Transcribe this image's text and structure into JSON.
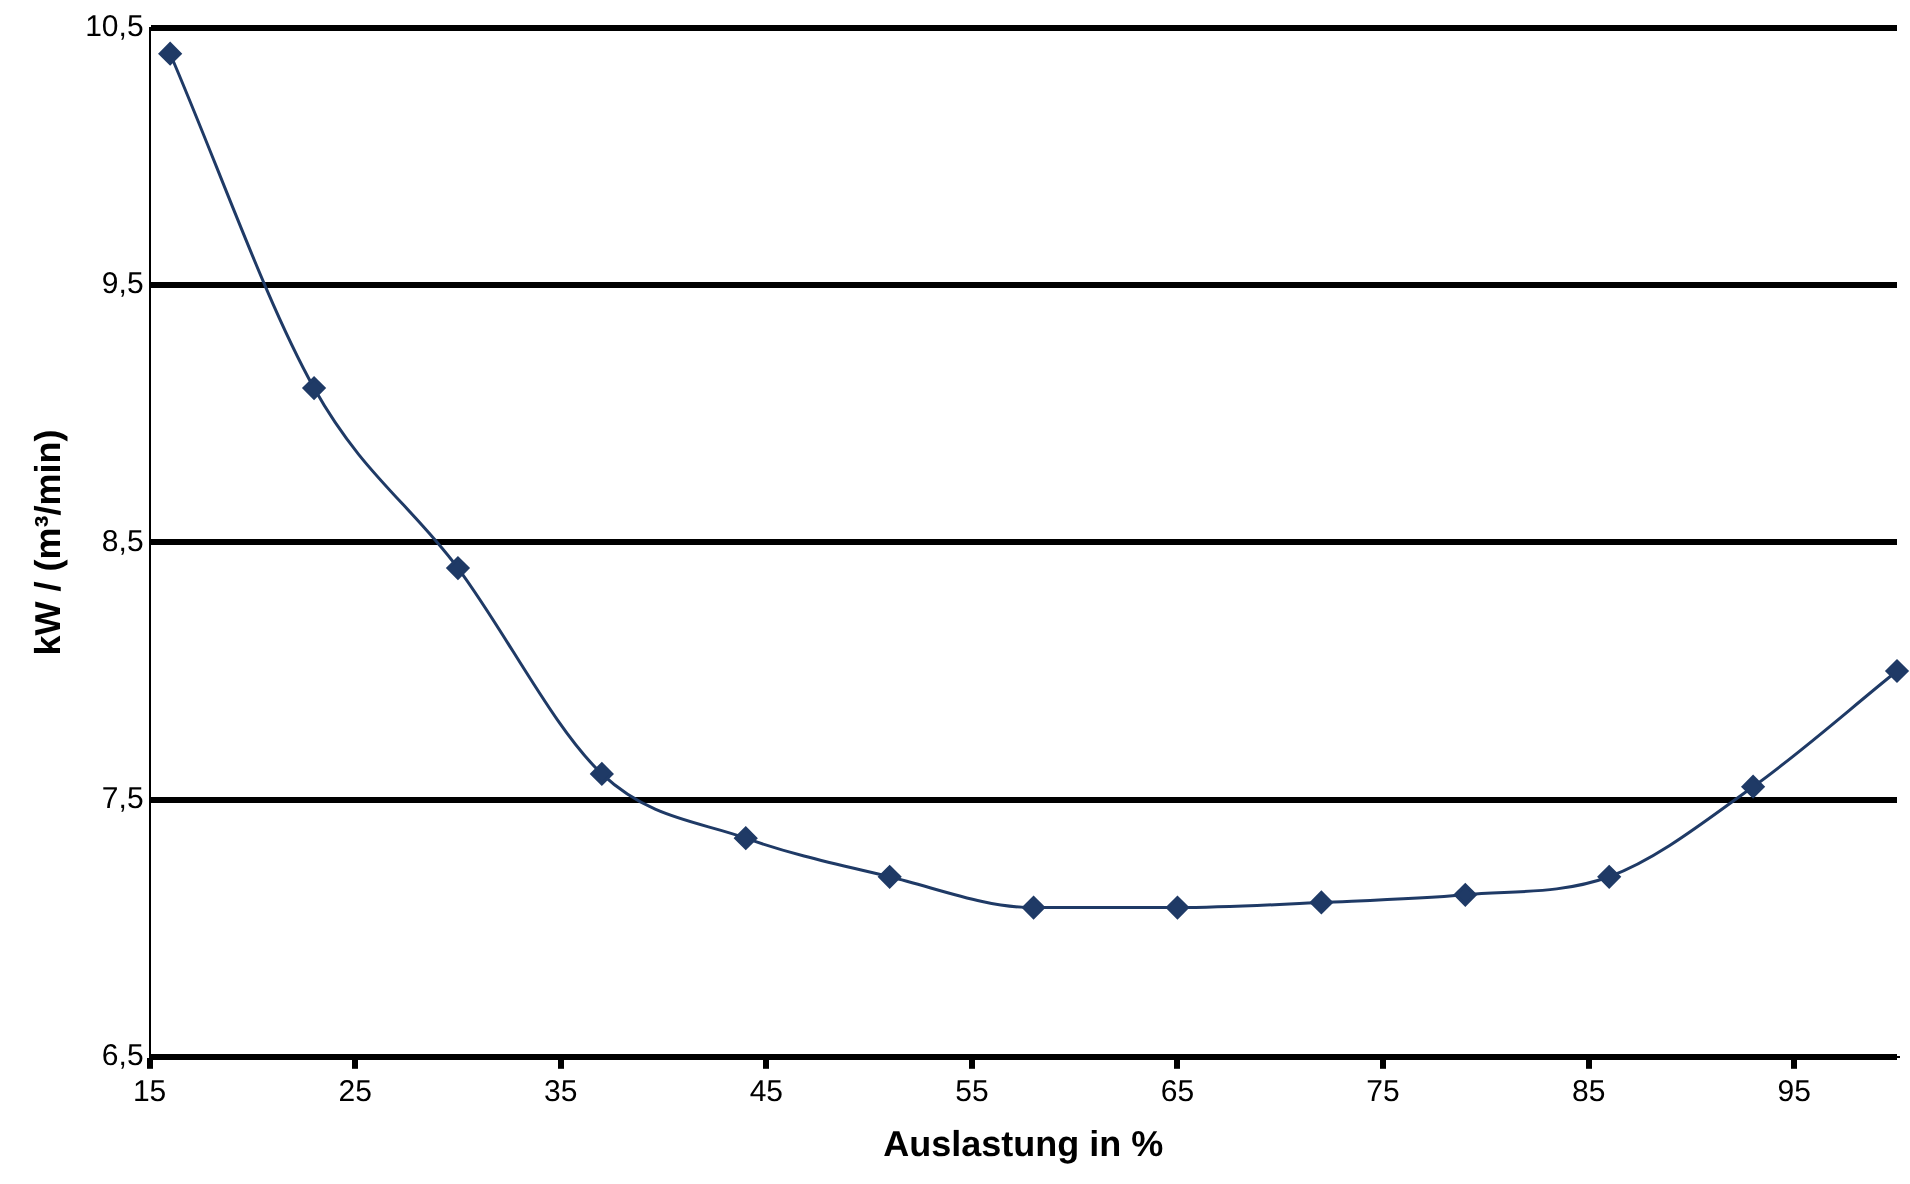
{
  "chart_data": {
    "type": "line",
    "xlabel": "Auslastung in %",
    "ylabel": "kW / (m³/min)",
    "x": [
      16,
      23,
      30,
      37,
      44,
      51,
      58,
      65,
      72,
      79,
      86,
      93,
      100
    ],
    "series": [
      {
        "color": "#1f3a66",
        "values": [
          10.4,
          9.1,
          8.4,
          7.6,
          7.35,
          7.2,
          7.08,
          7.08,
          7.1,
          7.13,
          7.2,
          7.55,
          8.0
        ]
      }
    ],
    "xlim": [
      15,
      100
    ],
    "xticks": [
      15,
      25,
      35,
      45,
      55,
      65,
      75,
      85,
      95
    ],
    "ylim": [
      6.5,
      10.5
    ],
    "yticks": [
      {
        "value": 6.5,
        "label": "6,5"
      },
      {
        "value": 7.5,
        "label": "7,5"
      },
      {
        "value": 8.5,
        "label": "8,5"
      },
      {
        "value": 9.5,
        "label": "9,5"
      },
      {
        "value": 10.5,
        "label": "10,5"
      }
    ],
    "grid": "y",
    "legend": false,
    "marker": "diamond",
    "line_style": "solid"
  }
}
